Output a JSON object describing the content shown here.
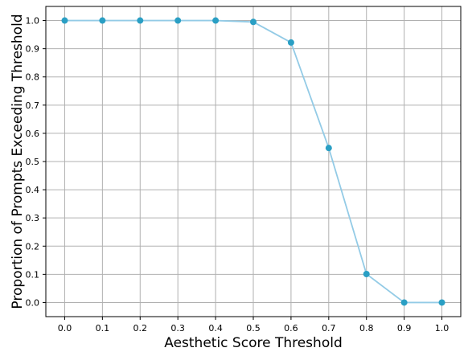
{
  "chart_data": {
    "type": "line",
    "title": "",
    "xlabel": "Aesthetic Score Threshold",
    "ylabel": "Proportion of Prompts Exceeding Threshold",
    "x": [
      0.0,
      0.1,
      0.2,
      0.3,
      0.4,
      0.5,
      0.6,
      0.7,
      0.8,
      0.9,
      1.0
    ],
    "series": [
      {
        "values": [
          1.0,
          1.0,
          1.0,
          1.0,
          1.0,
          0.995,
          0.922,
          0.548,
          0.101,
          0.0,
          0.0
        ]
      }
    ],
    "xlim": [
      -0.05,
      1.05
    ],
    "ylim": [
      -0.05,
      1.05
    ],
    "xticks": [
      "0.0",
      "0.1",
      "0.2",
      "0.3",
      "0.4",
      "0.5",
      "0.6",
      "0.7",
      "0.8",
      "0.9",
      "1.0"
    ],
    "yticks": [
      "0.0",
      "0.1",
      "0.2",
      "0.3",
      "0.4",
      "0.5",
      "0.6",
      "0.7",
      "0.8",
      "0.9",
      "1.0"
    ],
    "grid": true,
    "legend": "none",
    "colors": {
      "line": "#93cbe6",
      "marker": "#2a9fc4"
    }
  }
}
